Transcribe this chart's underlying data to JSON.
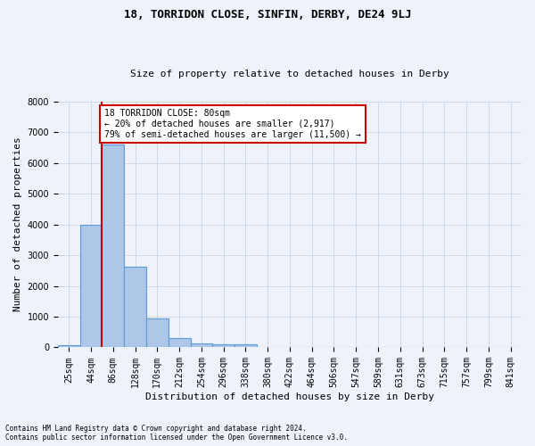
{
  "title": "18, TORRIDON CLOSE, SINFIN, DERBY, DE24 9LJ",
  "subtitle": "Size of property relative to detached houses in Derby",
  "xlabel": "Distribution of detached houses by size in Derby",
  "ylabel": "Number of detached properties",
  "footnote1": "Contains HM Land Registry data © Crown copyright and database right 2024.",
  "footnote2": "Contains public sector information licensed under the Open Government Licence v3.0.",
  "annotation_line1": "18 TORRIDON CLOSE: 80sqm",
  "annotation_line2": "← 20% of detached houses are smaller (2,917)",
  "annotation_line3": "79% of semi-detached houses are larger (11,500) →",
  "bar_labels": [
    "25sqm",
    "44sqm",
    "86sqm",
    "128sqm",
    "170sqm",
    "212sqm",
    "254sqm",
    "296sqm",
    "338sqm",
    "380sqm",
    "422sqm",
    "464sqm",
    "506sqm",
    "547sqm",
    "589sqm",
    "631sqm",
    "673sqm",
    "715sqm",
    "757sqm",
    "799sqm",
    "841sqm"
  ],
  "bar_values": [
    80,
    4000,
    6600,
    2620,
    950,
    310,
    130,
    110,
    90,
    0,
    0,
    0,
    0,
    0,
    0,
    0,
    0,
    0,
    0,
    0,
    0
  ],
  "bar_color": "#aec6e8",
  "bar_edge_color": "#5b9bd5",
  "property_line_x": 2.0,
  "ylim": [
    0,
    8000
  ],
  "grid_color": "#d0d8e8",
  "background_color": "#eef2fa",
  "annotation_box_color": "#ffffff",
  "annotation_box_edge": "#cc0000",
  "red_line_color": "#cc0000",
  "title_fontsize": 9,
  "subtitle_fontsize": 8,
  "ylabel_fontsize": 8,
  "xlabel_fontsize": 8,
  "tick_fontsize": 7,
  "annotation_fontsize": 7,
  "footnote_fontsize": 5.5
}
